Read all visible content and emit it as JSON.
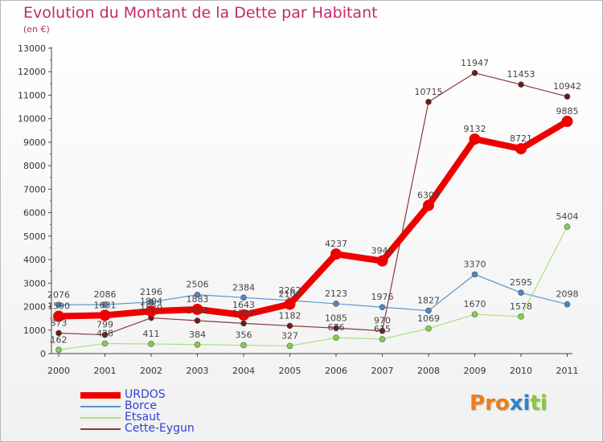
{
  "title": "Evolution du Montant de la Dette par Habitant",
  "subtitle": "(en €)",
  "logo": {
    "text": "Proxiti",
    "letters": [
      "P",
      "r",
      "o",
      "x",
      "i",
      "t",
      "i"
    ],
    "colors": [
      "#f07c1b",
      "#f07c1b",
      "#f07c1b",
      "#2f83c6",
      "#2f83c6",
      "#8cc63f",
      "#8cc63f"
    ]
  },
  "colors": {
    "title": "#c4286b",
    "axis": "#444444"
  },
  "chart_data": {
    "type": "line",
    "title": "Evolution du Montant de la Dette par Habitant",
    "subtitle": "(en €)",
    "xlabel": "",
    "ylabel": "",
    "ylim": [
      0,
      13000
    ],
    "ytick_step": 1000,
    "grid": false,
    "legend_position": "bottom-left",
    "x": [
      "2000",
      "2001",
      "2002",
      "2003",
      "2004",
      "2005",
      "2006",
      "2007",
      "2008",
      "2009",
      "2010",
      "2011"
    ],
    "yticks": [
      "0",
      "1000",
      "2000",
      "3000",
      "4000",
      "5000",
      "6000",
      "7000",
      "8000",
      "9000",
      "10000",
      "11000",
      "12000",
      "13000"
    ],
    "series": [
      {
        "name": "Borce",
        "color": "#5b97c9",
        "marker": "#4a86c7",
        "width": 1.2,
        "radius": 3.5,
        "values": [
          2076,
          2086,
          2196,
          2506,
          2384,
          2262,
          2123,
          1976,
          1827,
          3370,
          2595,
          2098
        ]
      },
      {
        "name": "Etsaut",
        "color": "#a9e27e",
        "marker": "#7fd14a",
        "width": 1.2,
        "radius": 3.5,
        "values": [
          162,
          428,
          411,
          384,
          356,
          327,
          676,
          615,
          1069,
          1670,
          1578,
          5404
        ]
      },
      {
        "name": "Cette-Eygun",
        "color": "#8a3a3a",
        "marker": "#6b1a1a",
        "width": 1.2,
        "radius": 3.5,
        "values": [
          873,
          799,
          1520,
          1403,
          1287,
          1182,
          1085,
          970,
          10715,
          11947,
          11453,
          10942
        ]
      },
      {
        "name": "URDOS",
        "color": "#ee0000",
        "marker": "#ee0000",
        "width": 8,
        "radius": 7,
        "values": [
          1590,
          1631,
          1804,
          1883,
          1643,
          2104,
          4237,
          3946,
          6309,
          9132,
          8721,
          9885
        ]
      }
    ],
    "legend": [
      {
        "name": "URDOS",
        "color": "#ee0000",
        "width": 8
      },
      {
        "name": "Borce",
        "color": "#5b97c9",
        "width": 2
      },
      {
        "name": "Etsaut",
        "color": "#a9e27e",
        "width": 2
      },
      {
        "name": "Cette-Eygun",
        "color": "#8a3a3a",
        "width": 2
      }
    ]
  }
}
